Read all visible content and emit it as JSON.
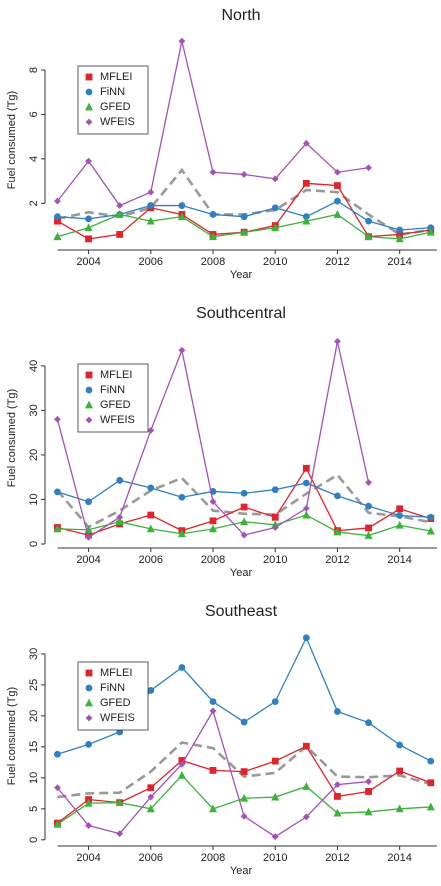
{
  "chart_data": [
    {
      "type": "line",
      "title": "North",
      "xlabel": "Year",
      "ylabel": "Fuel consumed (Tg)",
      "x": [
        2003,
        2004,
        2005,
        2006,
        2007,
        2008,
        2009,
        2010,
        2011,
        2012,
        2013,
        2014,
        2015
      ],
      "xlim": [
        2002.6,
        2015.2
      ],
      "xticks": [
        2004,
        2006,
        2008,
        2010,
        2012,
        2014
      ],
      "ylim": [
        -0.1,
        9.8
      ],
      "yticks": [
        2,
        4,
        6,
        8
      ],
      "series": [
        {
          "color": "#999999",
          "dashed": true,
          "values": [
            1.3,
            1.6,
            1.4,
            1.8,
            3.5,
            1.5,
            1.5,
            1.7,
            2.6,
            2.5,
            1.5,
            0.6,
            0.8
          ]
        },
        {
          "name": "MFLEI",
          "color": "#e0242b",
          "marker": "square",
          "values": [
            1.2,
            0.4,
            0.6,
            1.8,
            1.5,
            0.6,
            0.7,
            1.0,
            2.9,
            2.8,
            0.5,
            0.6,
            0.8
          ]
        },
        {
          "name": "FiNN",
          "color": "#2f7fc1",
          "marker": "circle",
          "values": [
            1.4,
            1.3,
            1.5,
            1.9,
            1.9,
            1.5,
            1.4,
            1.8,
            1.4,
            2.1,
            1.2,
            0.8,
            0.9
          ]
        },
        {
          "name": "GFED",
          "color": "#3bb33b",
          "marker": "triangle",
          "values": [
            0.5,
            0.9,
            1.5,
            1.2,
            1.4,
            0.5,
            0.7,
            0.9,
            1.2,
            1.5,
            0.5,
            0.4,
            0.7
          ]
        },
        {
          "name": "WFEIS",
          "color": "#a451b8",
          "marker": "diamond",
          "values": [
            2.1,
            3.9,
            1.9,
            2.5,
            9.3,
            3.4,
            3.3,
            3.1,
            4.7,
            3.4,
            3.6,
            null,
            null
          ]
        }
      ]
    },
    {
      "type": "line",
      "title": "Southcentral",
      "xlabel": "Year",
      "ylabel": "Fuel consumed (Tg)",
      "x": [
        2003,
        2004,
        2005,
        2006,
        2007,
        2008,
        2009,
        2010,
        2011,
        2012,
        2013,
        2014,
        2015
      ],
      "xlim": [
        2002.6,
        2015.2
      ],
      "xticks": [
        2004,
        2006,
        2008,
        2010,
        2012,
        2014
      ],
      "ylim": [
        -0.9,
        48.5
      ],
      "yticks": [
        0,
        10,
        20,
        30,
        40
      ],
      "series": [
        {
          "color": "#999999",
          "dashed": true,
          "values": [
            12.0,
            3.8,
            7.5,
            12.0,
            14.8,
            7.5,
            6.8,
            6.6,
            11.3,
            15.5,
            7.0,
            6.2,
            4.9
          ]
        },
        {
          "name": "MFLEI",
          "color": "#e0242b",
          "marker": "square",
          "values": [
            3.7,
            2.0,
            4.5,
            6.5,
            3.0,
            5.2,
            8.3,
            6.0,
            17.0,
            3.0,
            3.6,
            7.9,
            5.7
          ]
        },
        {
          "name": "FiNN",
          "color": "#2f7fc1",
          "marker": "circle",
          "values": [
            11.7,
            9.5,
            14.3,
            12.6,
            10.5,
            11.8,
            11.4,
            12.2,
            13.7,
            10.8,
            8.5,
            6.4,
            6.0
          ]
        },
        {
          "name": "GFED",
          "color": "#3bb33b",
          "marker": "triangle",
          "values": [
            3.4,
            3.2,
            5.0,
            3.4,
            2.3,
            3.4,
            5.0,
            4.3,
            6.5,
            2.7,
            1.9,
            4.2,
            2.9
          ]
        },
        {
          "name": "WFEIS",
          "color": "#a451b8",
          "marker": "diamond",
          "values": [
            28.0,
            1.5,
            6.0,
            25.5,
            43.5,
            9.5,
            2.0,
            3.7,
            8.0,
            45.5,
            13.8,
            null,
            null
          ]
        }
      ]
    },
    {
      "type": "line",
      "title": "Southeast",
      "xlabel": "Year",
      "ylabel": "Fuel consumed (Tg)",
      "x": [
        2003,
        2004,
        2005,
        2006,
        2007,
        2008,
        2009,
        2010,
        2011,
        2012,
        2013,
        2014,
        2015
      ],
      "xlim": [
        2002.6,
        2015.2
      ],
      "xticks": [
        2004,
        2006,
        2008,
        2010,
        2012,
        2014
      ],
      "ylim": [
        -1,
        34.5
      ],
      "yticks": [
        0,
        5,
        10,
        15,
        20,
        25,
        30
      ],
      "series": [
        {
          "color": "#999999",
          "dashed": true,
          "values": [
            6.9,
            7.5,
            7.6,
            11.0,
            15.7,
            14.8,
            10.2,
            10.8,
            15.1,
            10.2,
            10.1,
            10.4,
            9.0
          ]
        },
        {
          "name": "MFLEI",
          "color": "#e0242b",
          "marker": "square",
          "values": [
            2.7,
            6.5,
            6.0,
            8.4,
            12.8,
            11.2,
            11.0,
            12.7,
            15.1,
            7.0,
            7.8,
            11.1,
            9.2
          ]
        },
        {
          "name": "FiNN",
          "color": "#2f7fc1",
          "marker": "circle",
          "values": [
            13.8,
            15.4,
            17.4,
            24.1,
            27.8,
            22.3,
            19.0,
            22.3,
            32.6,
            20.7,
            18.9,
            15.3,
            12.7
          ]
        },
        {
          "name": "GFED",
          "color": "#3bb33b",
          "marker": "triangle",
          "values": [
            2.5,
            5.9,
            6.0,
            5.0,
            10.4,
            5.0,
            6.7,
            6.9,
            8.6,
            4.3,
            4.5,
            5.0,
            5.3
          ]
        },
        {
          "name": "WFEIS",
          "color": "#a451b8",
          "marker": "diamond",
          "values": [
            8.4,
            2.3,
            1.0,
            6.9,
            12.2,
            20.8,
            3.8,
            0.5,
            3.7,
            8.9,
            9.4,
            null,
            null
          ]
        }
      ]
    }
  ]
}
